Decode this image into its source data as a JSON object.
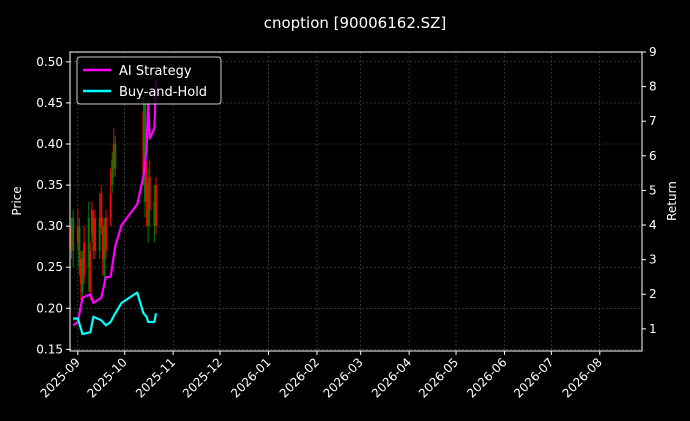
{
  "chart_data": {
    "type": "line",
    "title": "cnoption [90006162.SZ]",
    "ylabel": "Price",
    "y2label": "Return",
    "xlim": [
      "2025-08-27",
      "2026-08-28"
    ],
    "ylim": [
      0.148,
      0.512
    ],
    "y2lim": [
      0.36,
      9.0
    ],
    "x_ticks": [
      "2025-09",
      "2025-10",
      "2025-11",
      "2025-12",
      "2026-01",
      "2026-02",
      "2026-03",
      "2026-04",
      "2026-05",
      "2026-06",
      "2026-07",
      "2026-08"
    ],
    "y_ticks": [
      "0.15",
      "0.20",
      "0.25",
      "0.30",
      "0.35",
      "0.40",
      "0.45",
      "0.50"
    ],
    "y2_ticks": [
      "1",
      "2",
      "3",
      "4",
      "5",
      "6",
      "7",
      "8",
      "9"
    ],
    "grid": true,
    "legend_placement": "top-left",
    "colors": {
      "background": "#000000",
      "up": "#ff0000",
      "down": "#008000",
      "strategy": "#ff00ff",
      "buy_hold": "#00ffff"
    },
    "candles": [
      {
        "date": "2025-08-28",
        "open": 0.27,
        "close": 0.3,
        "high": 0.31,
        "low": 0.26
      },
      {
        "date": "2025-08-29",
        "open": 0.31,
        "close": 0.27,
        "high": 0.32,
        "low": 0.25
      },
      {
        "date": "2025-09-01",
        "open": 0.28,
        "close": 0.3,
        "high": 0.32,
        "low": 0.27
      },
      {
        "date": "2025-09-02",
        "open": 0.3,
        "close": 0.25,
        "high": 0.31,
        "low": 0.24
      },
      {
        "date": "2025-09-03",
        "open": 0.23,
        "close": 0.26,
        "high": 0.27,
        "low": 0.21
      },
      {
        "date": "2025-09-04",
        "open": 0.26,
        "close": 0.22,
        "high": 0.27,
        "low": 0.21
      },
      {
        "date": "2025-09-05",
        "open": 0.24,
        "close": 0.28,
        "high": 0.3,
        "low": 0.23
      },
      {
        "date": "2025-09-08",
        "open": 0.31,
        "close": 0.25,
        "high": 0.33,
        "low": 0.22
      },
      {
        "date": "2025-09-09",
        "open": 0.22,
        "close": 0.27,
        "high": 0.28,
        "low": 0.21
      },
      {
        "date": "2025-09-10",
        "open": 0.29,
        "close": 0.32,
        "high": 0.33,
        "low": 0.28
      },
      {
        "date": "2025-09-11",
        "open": 0.31,
        "close": 0.27,
        "high": 0.32,
        "low": 0.26
      },
      {
        "date": "2025-09-12",
        "open": 0.27,
        "close": 0.31,
        "high": 0.32,
        "low": 0.26
      },
      {
        "date": "2025-09-15",
        "open": 0.31,
        "close": 0.27,
        "high": 0.34,
        "low": 0.26
      },
      {
        "date": "2025-09-16",
        "open": 0.3,
        "close": 0.34,
        "high": 0.35,
        "low": 0.29
      },
      {
        "date": "2025-09-17",
        "open": 0.26,
        "close": 0.3,
        "high": 0.31,
        "low": 0.24
      },
      {
        "date": "2025-09-18",
        "open": 0.3,
        "close": 0.24,
        "high": 0.31,
        "low": 0.23
      },
      {
        "date": "2025-09-19",
        "open": 0.27,
        "close": 0.31,
        "high": 0.32,
        "low": 0.26
      },
      {
        "date": "2025-09-22",
        "open": 0.31,
        "close": 0.34,
        "high": 0.37,
        "low": 0.3
      },
      {
        "date": "2025-09-23",
        "open": 0.38,
        "close": 0.35,
        "high": 0.39,
        "low": 0.34
      },
      {
        "date": "2025-09-24",
        "open": 0.37,
        "close": 0.4,
        "high": 0.42,
        "low": 0.36
      },
      {
        "date": "2025-09-25",
        "open": 0.4,
        "close": 0.37,
        "high": 0.41,
        "low": 0.36
      },
      {
        "date": "2025-10-13",
        "open": 0.36,
        "close": 0.44,
        "high": 0.46,
        "low": 0.35
      },
      {
        "date": "2025-10-14",
        "open": 0.45,
        "close": 0.33,
        "high": 0.47,
        "low": 0.31
      },
      {
        "date": "2025-10-15",
        "open": 0.33,
        "close": 0.36,
        "high": 0.38,
        "low": 0.3
      },
      {
        "date": "2025-10-16",
        "open": 0.35,
        "close": 0.3,
        "high": 0.37,
        "low": 0.28
      },
      {
        "date": "2025-10-17",
        "open": 0.32,
        "close": 0.36,
        "high": 0.38,
        "low": 0.3
      },
      {
        "date": "2025-10-20",
        "open": 0.33,
        "close": 0.3,
        "high": 0.35,
        "low": 0.28
      },
      {
        "date": "2025-10-21",
        "open": 0.3,
        "close": 0.35,
        "high": 0.36,
        "low": 0.29
      }
    ],
    "x": [
      "2025-08-29",
      "2025-09-01",
      "2025-09-04",
      "2025-09-09",
      "2025-09-11",
      "2025-09-16",
      "2025-09-19",
      "2025-09-22",
      "2025-09-25",
      "2025-09-29",
      "2025-10-09",
      "2025-10-13",
      "2025-10-15",
      "2025-10-16",
      "2025-10-17",
      "2025-10-20",
      "2025-10-21"
    ],
    "series": [
      {
        "name": "AI Strategy",
        "values": [
          1.1,
          1.2,
          1.9,
          2.0,
          1.75,
          1.9,
          2.5,
          2.5,
          3.4,
          4.0,
          4.6,
          5.4,
          6.2,
          7.6,
          6.5,
          6.8,
          8.2
        ]
      },
      {
        "name": "Buy-and-Hold",
        "values": [
          1.3,
          1.3,
          0.85,
          0.9,
          1.35,
          1.25,
          1.1,
          1.2,
          1.45,
          1.75,
          2.05,
          1.45,
          1.35,
          1.2,
          1.2,
          1.2,
          1.45
        ]
      }
    ]
  }
}
